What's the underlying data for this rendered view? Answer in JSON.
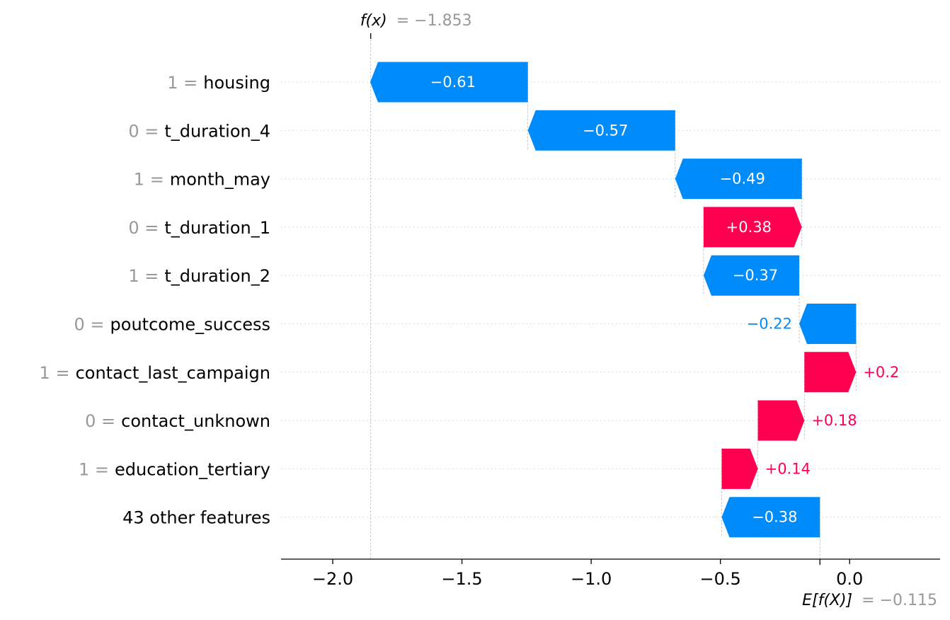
{
  "chart_data": {
    "type": "waterfall",
    "fx": {
      "label": "f(x)",
      "value_text": "= −1.853",
      "value": -1.853
    },
    "efx": {
      "label": "E[f(X)]",
      "value_text": "= −0.115",
      "value": -0.115
    },
    "xlim": [
      -2.2,
      0.35
    ],
    "x_ticks": [
      {
        "value": -2.0,
        "label": "−2.0"
      },
      {
        "value": -1.5,
        "label": "−1.5"
      },
      {
        "value": -1.0,
        "label": "−1.0"
      },
      {
        "value": -0.5,
        "label": "−0.5"
      },
      {
        "value": 0.0,
        "label": "0.0"
      }
    ],
    "features": [
      {
        "value_label": "1 =",
        "name": "housing",
        "contribution": -0.61,
        "label": "−0.61"
      },
      {
        "value_label": "0 =",
        "name": "t_duration_4",
        "contribution": -0.57,
        "label": "−0.57"
      },
      {
        "value_label": "1 =",
        "name": "month_may",
        "contribution": -0.49,
        "label": "−0.49"
      },
      {
        "value_label": "0 =",
        "name": "t_duration_1",
        "contribution": 0.38,
        "label": "+0.38"
      },
      {
        "value_label": "1 =",
        "name": "t_duration_2",
        "contribution": -0.37,
        "label": "−0.37"
      },
      {
        "value_label": "0 =",
        "name": "poutcome_success",
        "contribution": -0.22,
        "label": "−0.22"
      },
      {
        "value_label": "1 =",
        "name": "contact_last_campaign",
        "contribution": 0.2,
        "label": "+0.2"
      },
      {
        "value_label": "0 =",
        "name": "contact_unknown",
        "contribution": 0.18,
        "label": "+0.18"
      },
      {
        "value_label": "1 =",
        "name": "education_tertiary",
        "contribution": 0.14,
        "label": "+0.14"
      },
      {
        "value_label": "",
        "name": "43 other features",
        "contribution": -0.38,
        "label": "−0.38"
      }
    ],
    "colors": {
      "positive": "#ff0051",
      "negative": "#008bfb",
      "grid": "#cccccc"
    }
  }
}
